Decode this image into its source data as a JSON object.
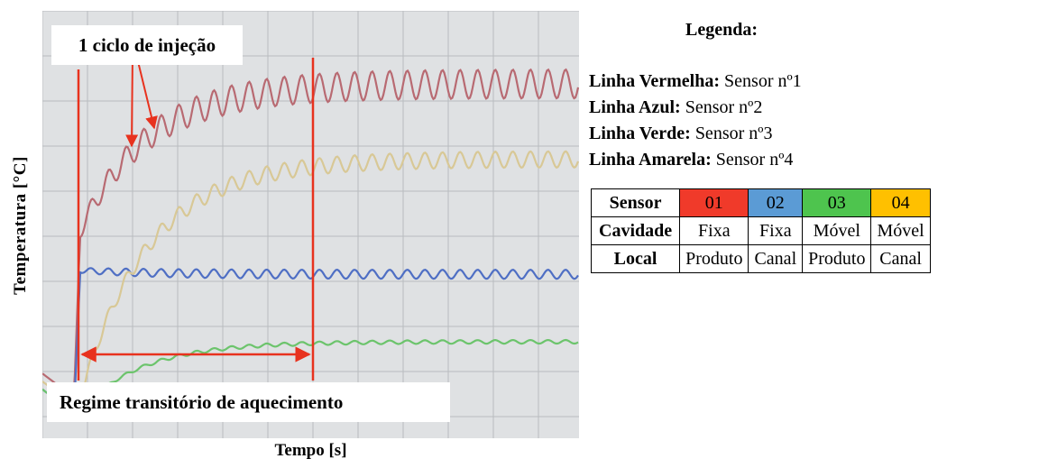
{
  "chart_data": {
    "type": "line",
    "title": "",
    "xlabel": "Tempo [s]",
    "ylabel": "Temperatura [°C]",
    "grid": true,
    "series": [
      {
        "name": "Sensor nº1",
        "color": "#b86a72",
        "settle_level": 0.85,
        "ripple": "large"
      },
      {
        "name": "Sensor nº2",
        "color": "#4f6fc4",
        "settle_level": 0.37,
        "ripple": "small"
      },
      {
        "name": "Sensor nº3",
        "color": "#6cc46c",
        "settle_level": 0.2,
        "ripple": "very small"
      },
      {
        "name": "Sensor nº4",
        "color": "#d8c896",
        "settle_level": 0.66,
        "ripple": "medium"
      }
    ],
    "annotations": {
      "cycle": "1 ciclo de injeção",
      "regime": "Regime transitório de aquecimento"
    }
  },
  "legend": {
    "title": "Legenda:",
    "lines": [
      {
        "label": "Linha Vermelha:",
        "value": "Sensor nº1"
      },
      {
        "label": "Linha Azul:",
        "value": "Sensor nº2"
      },
      {
        "label": "Linha Verde:",
        "value": "Sensor nº3"
      },
      {
        "label": "Linha Amarela:",
        "value": "Sensor nº4"
      }
    ]
  },
  "table": {
    "row_headers": [
      "Sensor",
      "Cavidade",
      "Local"
    ],
    "sensors": [
      "01",
      "02",
      "03",
      "04"
    ],
    "sensor_colors": [
      "#f03a2a",
      "#5b9bd5",
      "#4ec44e",
      "#ffc000"
    ],
    "cavidade": [
      "Fixa",
      "Fixa",
      "Móvel",
      "Móvel"
    ],
    "local": [
      "Produto",
      "Canal",
      "Produto",
      "Canal"
    ]
  }
}
